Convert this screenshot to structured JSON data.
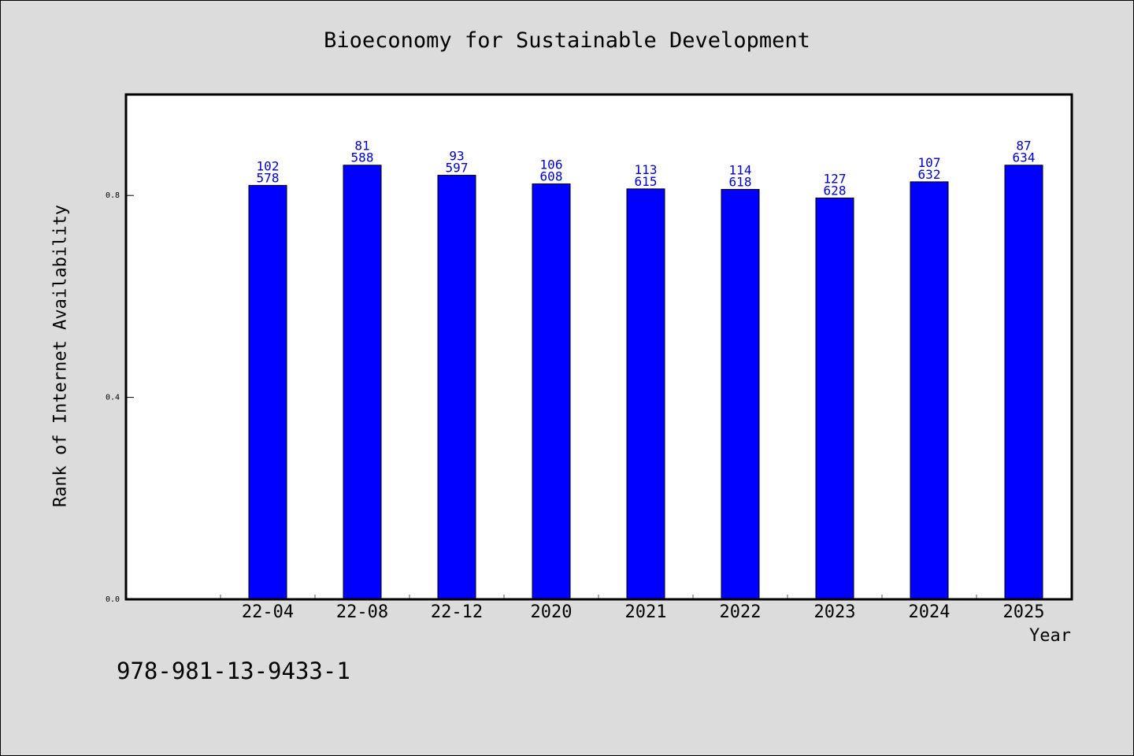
{
  "chart_data": {
    "type": "bar",
    "title": "Bioeconomy for Sustainable Development",
    "xlabel": "Year",
    "ylabel": "Rank of Internet Availability",
    "ylim": [
      0.0,
      1.0
    ],
    "yticks": [
      "0.0",
      "0.4",
      "0.8"
    ],
    "ytick_values": [
      0.0,
      0.4,
      0.8
    ],
    "categories": [
      "22-04",
      "22-08",
      "22-12",
      "2020",
      "2021",
      "2022",
      "2023",
      "2024",
      "2025"
    ],
    "values": [
      0.82,
      0.86,
      0.84,
      0.823,
      0.813,
      0.812,
      0.795,
      0.827,
      0.86
    ],
    "label_top": [
      "102",
      "81",
      "93",
      "106",
      "113",
      "114",
      "127",
      "107",
      "87"
    ],
    "label_bottom": [
      "578",
      "588",
      "597",
      "608",
      "615",
      "618",
      "628",
      "632",
      "634"
    ],
    "bar_color": "#0000ff",
    "label_color": "#0000cc",
    "grid": false
  },
  "footer": {
    "code": "978-981-13-9433-1"
  }
}
